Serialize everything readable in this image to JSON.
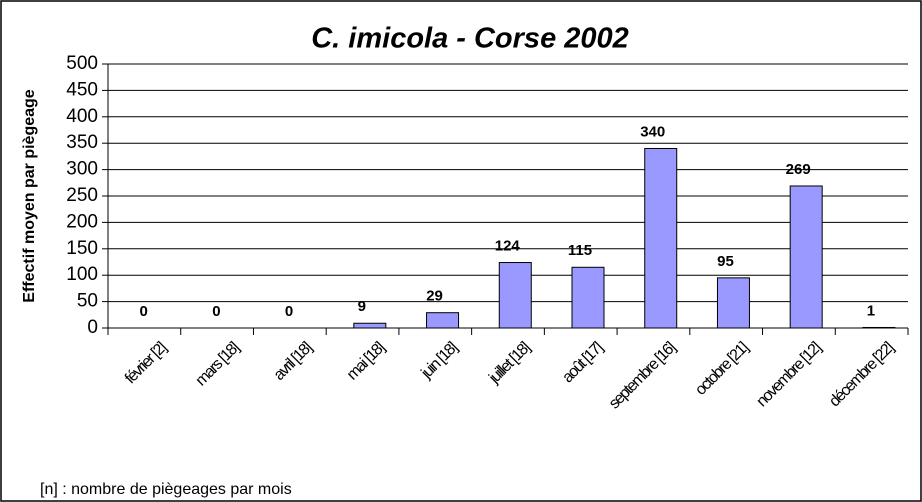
{
  "chart_data": {
    "type": "bar",
    "title": "C. imicola - Corse 2002",
    "y_axis_label": "Effectif moyen par piègeage",
    "note": "[n] : nombre de piègeages par mois",
    "categories": [
      "février [2]",
      "mars [18]",
      "avril [18]",
      "mai [18]",
      "juin [18]",
      "juillet [18]",
      "août [17]",
      "septembre [16]",
      "octobre [21]",
      "novembre [12]",
      "décembre [22]"
    ],
    "values": [
      0,
      0,
      0,
      9,
      29,
      124,
      115,
      340,
      95,
      269,
      1
    ],
    "color": "#9999ff",
    "ylim": [
      0,
      500
    ],
    "yticks": [
      0,
      50,
      100,
      150,
      200,
      250,
      300,
      350,
      400,
      450,
      500
    ],
    "grid": true
  }
}
